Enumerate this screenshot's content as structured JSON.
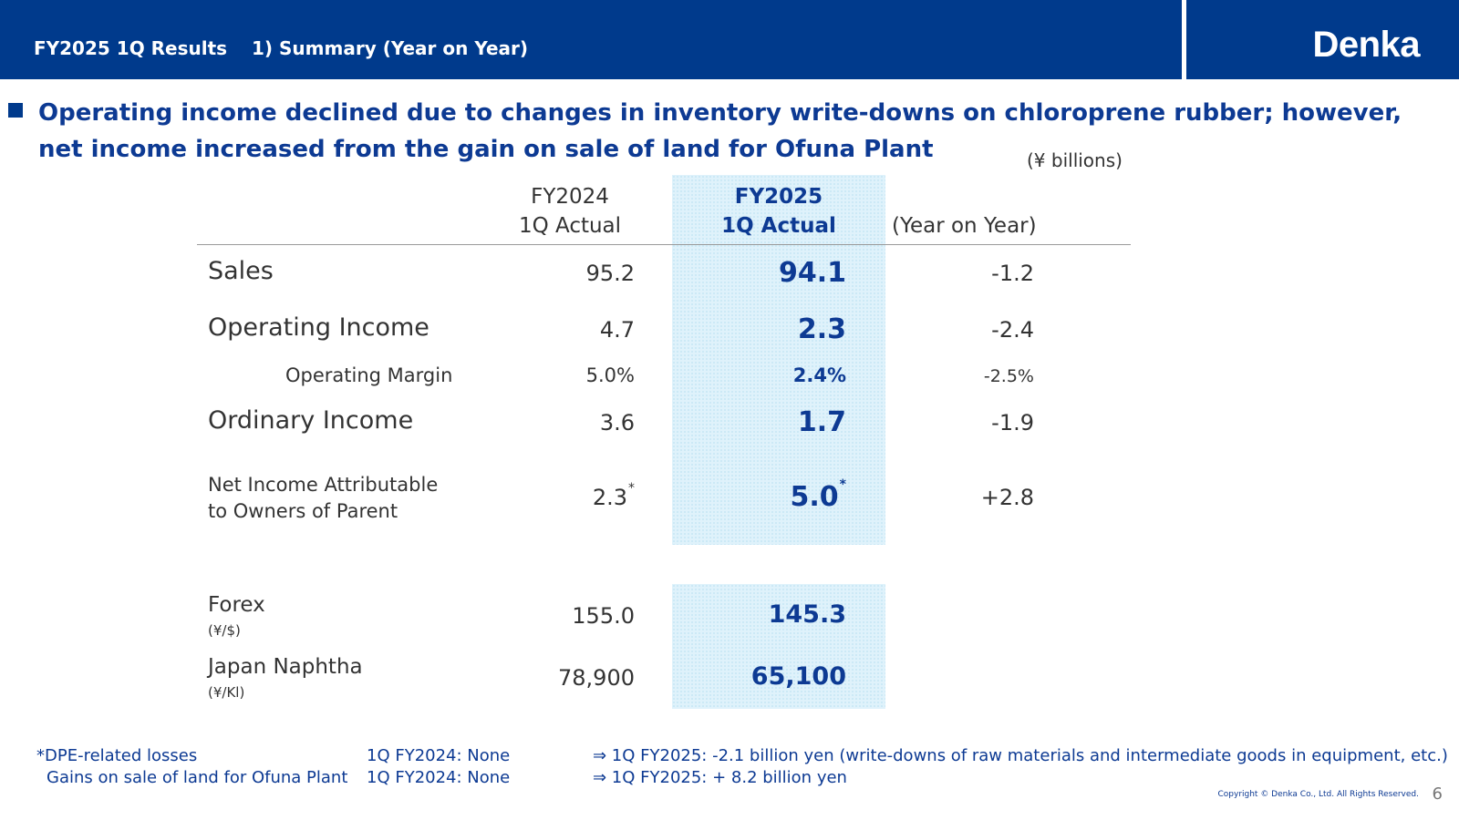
{
  "header": {
    "title": "FY2025 1Q Results",
    "section": "1) Summary (Year on Year)",
    "logo": "Denka"
  },
  "headline": {
    "line1": "Operating income declined due to changes in inventory write-downs on chloroprene rubber; however,",
    "line2": "net income increased from the gain on sale of land for Ofuna Plant"
  },
  "unit_note": "(¥ billions)",
  "columns": {
    "fy2024": {
      "line1": "FY2024",
      "line2": "1Q Actual"
    },
    "fy2025": {
      "line1": "FY2025",
      "line2": "1Q Actual"
    },
    "yoy": "(Year on Year)"
  },
  "rows": {
    "sales": {
      "label": "Sales",
      "fy2024": "95.2",
      "fy2025": "94.1",
      "yoy": "-1.2"
    },
    "operating_income": {
      "label": "Operating Income",
      "fy2024": "4.7",
      "fy2025": "2.3",
      "yoy": "-2.4"
    },
    "operating_margin": {
      "label": "Operating Margin",
      "fy2024": "5.0%",
      "fy2025": "2.4%",
      "yoy": "-2.5%"
    },
    "ordinary_income": {
      "label": "Ordinary Income",
      "fy2024": "3.6",
      "fy2025": "1.7",
      "yoy": "-1.9"
    },
    "net_income": {
      "label_line1": "Net Income Attributable",
      "label_line2": "to Owners of Parent",
      "fy2024": "2.3",
      "fy2025": "5.0",
      "asterisk": "*",
      "yoy": "+2.8"
    },
    "forex": {
      "label": "Forex",
      "unit": "(¥/$)",
      "fy2024": "155.0",
      "fy2025": "145.3"
    },
    "naphtha": {
      "label": "Japan Naphtha",
      "unit": "(¥/Kl)",
      "fy2024": "78,900",
      "fy2025": "65,100"
    }
  },
  "footnotes": {
    "dpe": {
      "label": "*DPE-related losses",
      "fy2024": "1Q FY2024: None",
      "fy2025": "⇒ 1Q FY2025: -2.1 billion yen (write-downs of raw materials and intermediate goods in equipment, etc.)"
    },
    "land": {
      "label": "Gains on sale of land for Ofuna Plant",
      "fy2024": "1Q FY2024: None",
      "fy2025": "⇒ 1Q FY2025: + 8.2 billion yen"
    }
  },
  "copyright": "Copyright © Denka Co., Ltd. All Rights Reserved.",
  "page_number": "6",
  "colors": {
    "header_bg": "#003a8c",
    "accent_text": "#0d3a93",
    "highlight_bg": "#dff2fb"
  }
}
